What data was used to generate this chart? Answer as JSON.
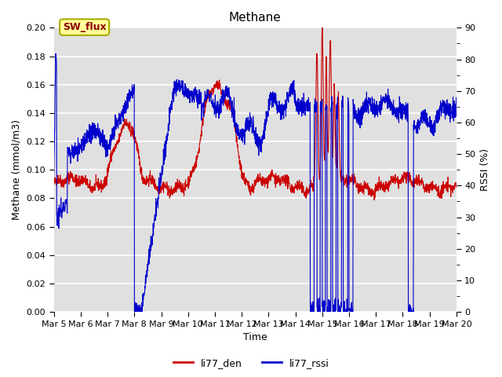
{
  "title": "Methane",
  "ylabel_left": "Methane (mmol/m3)",
  "ylabel_right": "RSSI (%)",
  "xlabel": "Time",
  "ylim_left": [
    0.0,
    0.2
  ],
  "ylim_right": [
    0,
    90
  ],
  "yticks_left": [
    0.0,
    0.02,
    0.04,
    0.06,
    0.08,
    0.1,
    0.12,
    0.14,
    0.16,
    0.18,
    0.2
  ],
  "yticks_right_major": [
    0,
    10,
    20,
    30,
    40,
    50,
    60,
    70,
    80,
    90
  ],
  "yticks_right_minor": [
    5,
    15,
    25,
    35,
    45,
    55,
    65,
    75,
    85
  ],
  "xtick_labels": [
    "Mar 5",
    "Mar 6",
    "Mar 7",
    "Mar 8",
    "Mar 9",
    "Mar 10",
    "Mar 11",
    "Mar 12",
    "Mar 13",
    "Mar 14",
    "Mar 15",
    "Mar 16",
    "Mar 17",
    "Mar 18",
    "Mar 19",
    "Mar 20"
  ],
  "legend_label": "SW_flux",
  "line1_label": "li77_den",
  "line2_label": "li77_rssi",
  "line1_color": "#cc0000",
  "line2_color": "#0000cc",
  "bg_color": "#e0e0e0",
  "fig_bg_color": "#ffffff",
  "sw_flux_fg": "#8b0000",
  "sw_flux_bg": "#ffff99",
  "sw_flux_edge": "#aaaa00",
  "title_fontsize": 11,
  "axis_fontsize": 9,
  "tick_fontsize": 8
}
